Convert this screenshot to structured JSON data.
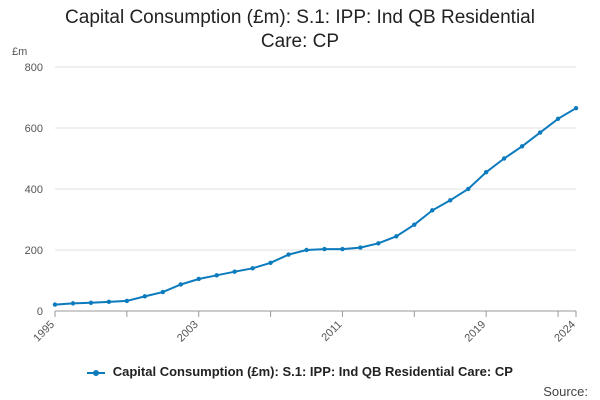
{
  "chart_data": {
    "type": "line",
    "title_line1": "Capital Consumption (£m): S.1: IPP: Ind QB Residential",
    "title_line2": "Care: CP",
    "ylabel": "£m",
    "ylim": [
      0,
      800
    ],
    "yticks": [
      0,
      200,
      400,
      600,
      800
    ],
    "xlim": [
      1995,
      2024
    ],
    "xticks": [
      "1995",
      "2003",
      "2011",
      "2019",
      "2024"
    ],
    "grid": true,
    "legend_position": "bottom",
    "series": [
      {
        "name": "Capital Consumption (£m): S.1: IPP: Ind QB Residential Care: CP",
        "color": "#0b7bbd",
        "x": [
          1995,
          1996,
          1997,
          1998,
          1999,
          2000,
          2001,
          2002,
          2003,
          2004,
          2005,
          2006,
          2007,
          2008,
          2009,
          2010,
          2011,
          2012,
          2013,
          2014,
          2015,
          2016,
          2017,
          2018,
          2019,
          2020,
          2021,
          2022,
          2023,
          2024
        ],
        "values": [
          21,
          25,
          27,
          30,
          33,
          48,
          62,
          87,
          105,
          117,
          129,
          140,
          158,
          185,
          200,
          203,
          203,
          208,
          222,
          245,
          283,
          330,
          363,
          400,
          455,
          500,
          540,
          585,
          630,
          665
        ]
      }
    ],
    "source_label": "Source:"
  }
}
